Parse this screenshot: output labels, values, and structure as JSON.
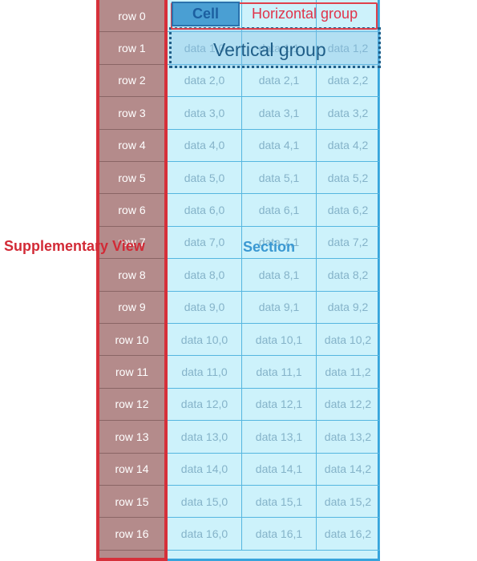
{
  "rows": [
    {
      "header": "row 0",
      "cells": [
        "",
        "",
        ""
      ]
    },
    {
      "header": "row 1",
      "cells": [
        "data 1,0",
        "data 1,1",
        "data 1,2"
      ]
    },
    {
      "header": "row 2",
      "cells": [
        "data 2,0",
        "data 2,1",
        "data 2,2"
      ]
    },
    {
      "header": "row 3",
      "cells": [
        "data 3,0",
        "data 3,1",
        "data 3,2"
      ]
    },
    {
      "header": "row 4",
      "cells": [
        "data 4,0",
        "data 4,1",
        "data 4,2"
      ]
    },
    {
      "header": "row 5",
      "cells": [
        "data 5,0",
        "data 5,1",
        "data 5,2"
      ]
    },
    {
      "header": "row 6",
      "cells": [
        "data 6,0",
        "data 6,1",
        "data 6,2"
      ]
    },
    {
      "header": "row 7",
      "cells": [
        "data 7,0",
        "data 7,1",
        "data 7,2"
      ]
    },
    {
      "header": "row 8",
      "cells": [
        "data 8,0",
        "data 8,1",
        "data 8,2"
      ]
    },
    {
      "header": "row 9",
      "cells": [
        "data 9,0",
        "data 9,1",
        "data 9,2"
      ]
    },
    {
      "header": "row 10",
      "cells": [
        "data 10,0",
        "data 10,1",
        "data 10,2"
      ]
    },
    {
      "header": "row 11",
      "cells": [
        "data 11,0",
        "data 11,1",
        "data 11,2"
      ]
    },
    {
      "header": "row 12",
      "cells": [
        "data 12,0",
        "data 12,1",
        "data 12,2"
      ]
    },
    {
      "header": "row 13",
      "cells": [
        "data 13,0",
        "data 13,1",
        "data 13,2"
      ]
    },
    {
      "header": "row 14",
      "cells": [
        "data 14,0",
        "data 14,1",
        "data 14,2"
      ]
    },
    {
      "header": "row 15",
      "cells": [
        "data 15,0",
        "data 15,1",
        "data 15,2"
      ]
    },
    {
      "header": "row 16",
      "cells": [
        "data 16,0",
        "data 16,1",
        "data 16,2"
      ]
    }
  ],
  "labels": {
    "cell": "Cell",
    "horizontal_group": "Horizontal group",
    "vertical_group": "Vertical group",
    "supplementary_view": "Supplementary View",
    "section": "Section"
  },
  "colors": {
    "supplementary": "#d6303a",
    "section": "#37a4dc",
    "vertical_group": "#1f5e88",
    "horizontal_group": "#e0334a"
  }
}
